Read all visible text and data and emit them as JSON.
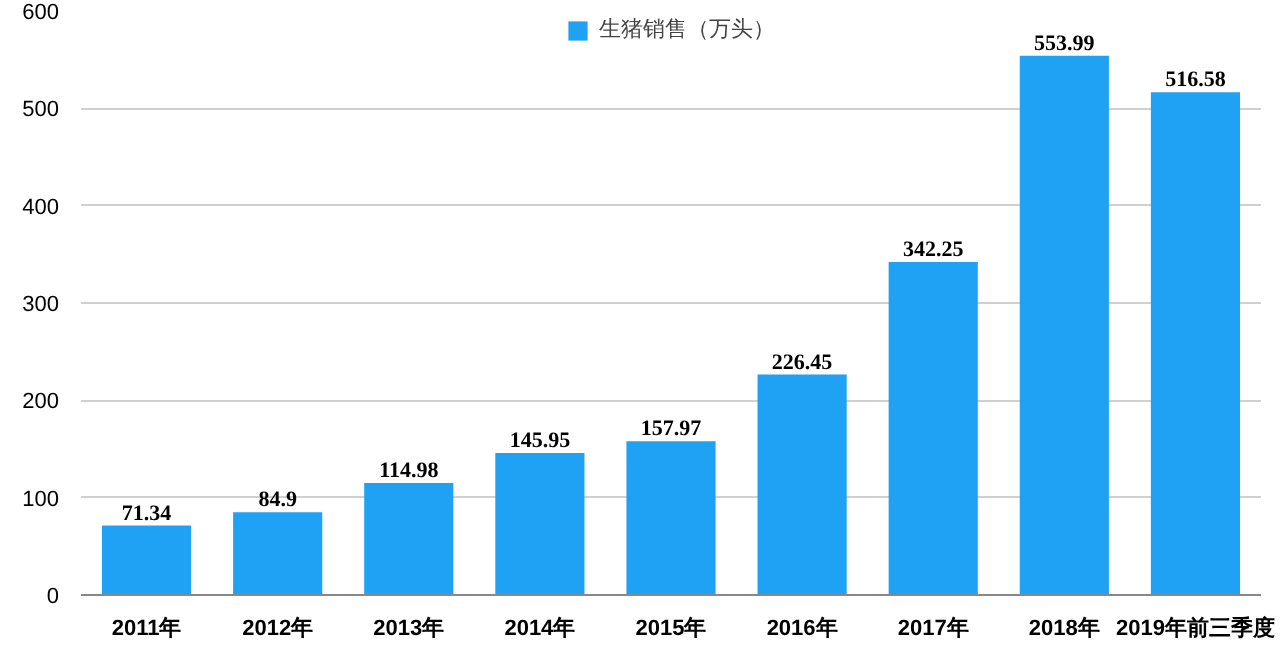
{
  "chart_data": {
    "type": "bar",
    "categories": [
      "2011年",
      "2012年",
      "2013年",
      "2014年",
      "2015年",
      "2016年",
      "2017年",
      "2018年",
      "2019年前三季度"
    ],
    "series": [
      {
        "name": "生猪销售（万头）",
        "color": "#1fa2f3",
        "values": [
          71.34,
          84.9,
          114.98,
          145.95,
          157.97,
          226.45,
          342.25,
          553.99,
          516.58
        ]
      }
    ],
    "ylim": [
      0,
      600
    ],
    "yticks": [
      0,
      100,
      200,
      300,
      400,
      500,
      600
    ],
    "grid": "y",
    "legend": "top",
    "data_labels": true
  }
}
